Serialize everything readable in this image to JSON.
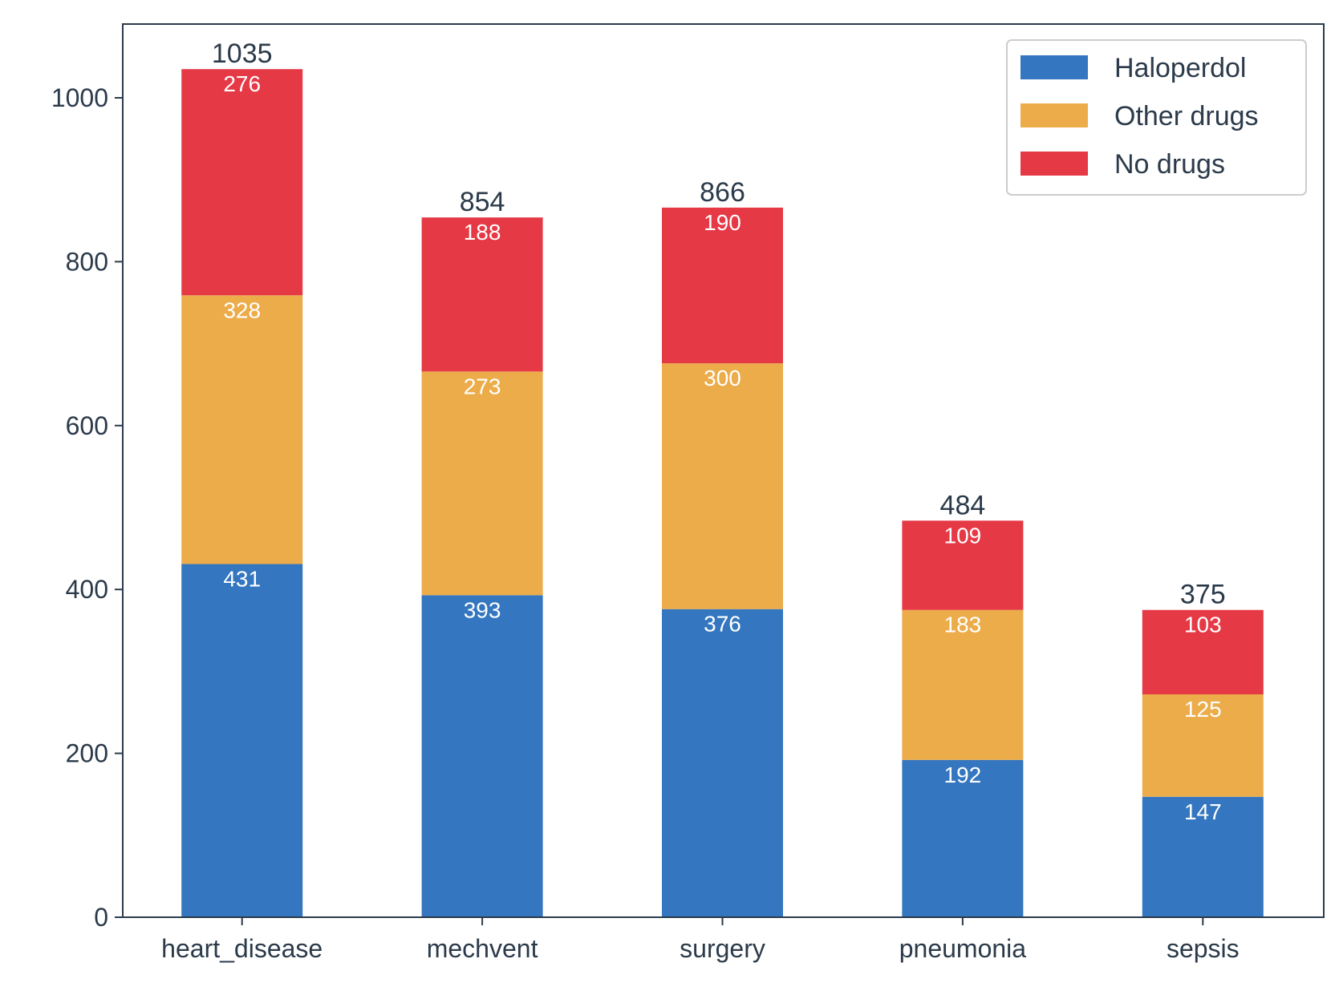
{
  "chart_data": {
    "type": "bar",
    "stacked": true,
    "categories": [
      "heart_disease",
      "mechvent",
      "surgery",
      "pneumonia",
      "sepsis"
    ],
    "series": [
      {
        "name": "Haloperdol",
        "color": "#3476bf",
        "values": [
          431,
          393,
          376,
          192,
          147
        ]
      },
      {
        "name": "Other drugs",
        "color": "#ecac4a",
        "values": [
          328,
          273,
          300,
          183,
          125
        ]
      },
      {
        "name": "No drugs",
        "color": "#e63946",
        "values": [
          276,
          188,
          190,
          109,
          103
        ]
      }
    ],
    "totals": [
      1035,
      854,
      866,
      484,
      375
    ],
    "ylim": [
      0,
      1090
    ],
    "yticks": [
      0,
      200,
      400,
      600,
      800,
      1000
    ],
    "title": "",
    "xlabel": "",
    "ylabel": "",
    "grid": false,
    "legend_position": "top-right",
    "axis_color": "#2b3a4a"
  }
}
